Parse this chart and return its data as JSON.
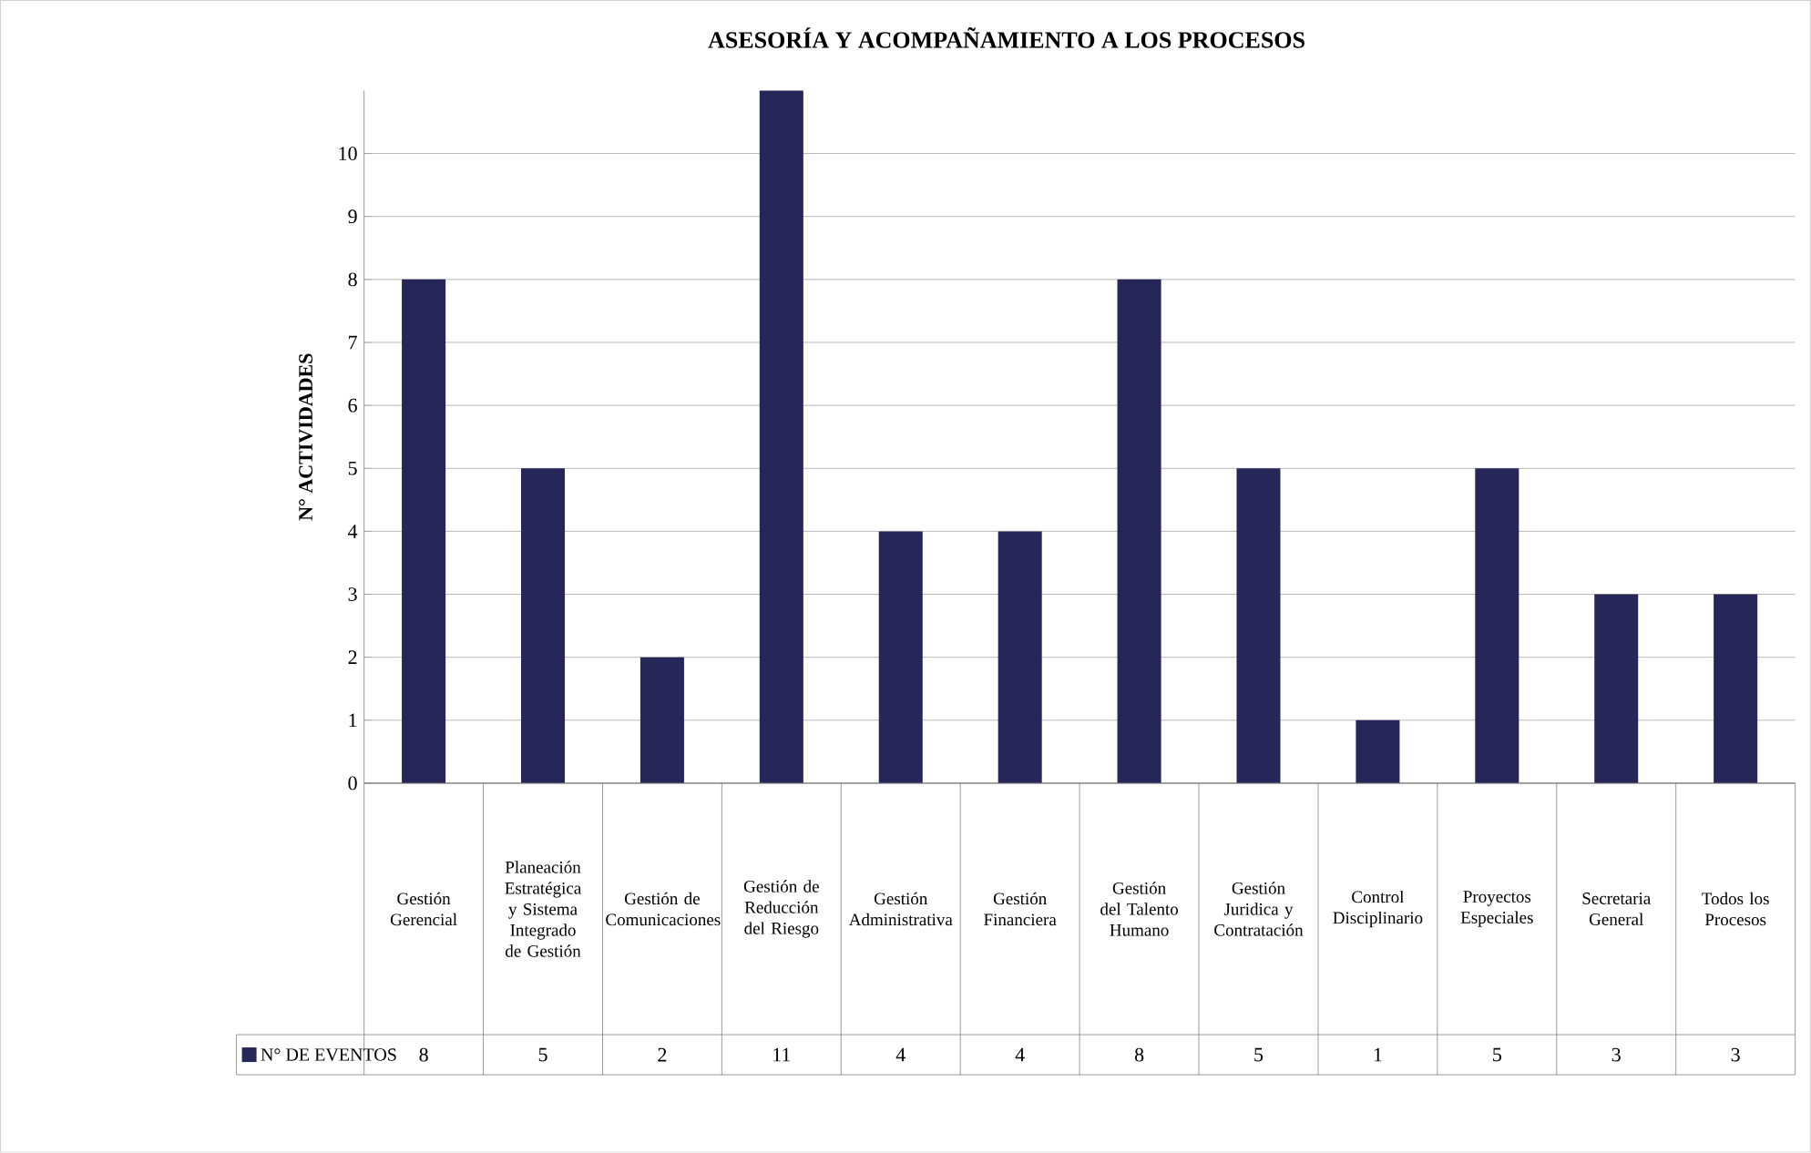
{
  "chart_data": {
    "type": "bar",
    "title": "ASESORÍA Y ACOMPAÑAMIENTO A LOS PROCESOS",
    "ylabel": "N° ACTIVIDADES",
    "categories": [
      "Gestión Gerencial",
      "Planeación Estratégica y Sistema Integrado de Gestión",
      "Gestión de Comunicaciones",
      "Gestión de Reducción del Riesgo",
      "Gestión Administrativa",
      "Gestión Financiera",
      "Gestión del Talento Humano",
      "Gestión Juridica y Contratación",
      "Control Disciplinario",
      "Proyectos Especiales",
      "Secretaria General",
      "Todos los Procesos"
    ],
    "series": [
      {
        "name": "N° DE EVENTOS",
        "color": "#262659",
        "values": [
          8,
          5,
          2,
          11,
          4,
          4,
          8,
          5,
          1,
          5,
          3,
          3
        ],
        "value_labels": [
          "8",
          "5",
          "2",
          "11",
          "4",
          "4",
          "8",
          "5",
          "1",
          "5",
          "3",
          "3"
        ]
      }
    ],
    "ylim": [
      0,
      11
    ],
    "yticks": [
      0,
      1,
      2,
      3,
      4,
      5,
      6,
      7,
      8,
      9,
      10
    ],
    "grid": "y",
    "legend": "bottom left"
  }
}
